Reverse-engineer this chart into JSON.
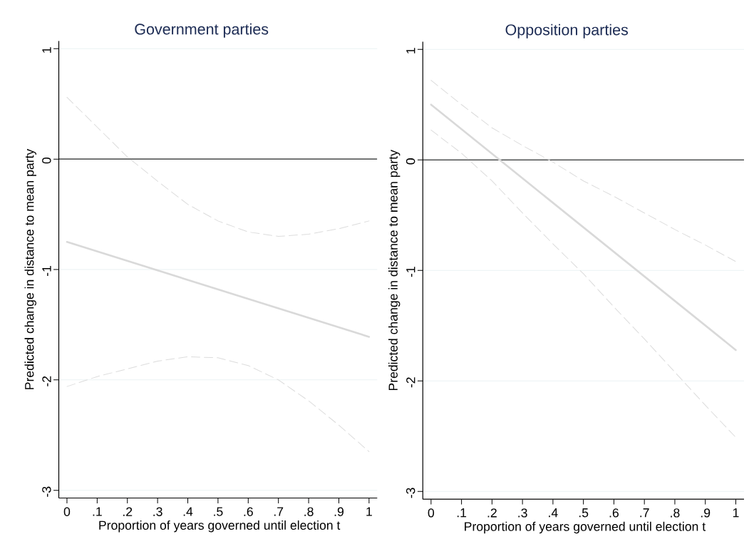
{
  "chart_data": [
    {
      "type": "line",
      "title": "Government parties",
      "xlabel": "Proportion of years governed until election t",
      "ylabel": "Predicted change in distance to mean party",
      "xlim": [
        -0.027,
        1.027
      ],
      "ylim": [
        -3.07,
        1.07
      ],
      "xticks": [
        0,
        {
          "value": 0.1,
          "label": ".1"
        },
        {
          "value": 0.2,
          "label": ".2"
        },
        {
          "value": 0.3,
          "label": ".3"
        },
        {
          "value": 0.4,
          "label": ".4"
        },
        {
          "value": 0.5,
          "label": ".5"
        },
        {
          "value": 0.6,
          "label": ".6"
        },
        {
          "value": 0.7,
          "label": ".7"
        },
        {
          "value": 0.8,
          "label": ".8"
        },
        {
          "value": 0.9,
          "label": ".9"
        },
        1
      ],
      "yticks": [
        -3,
        -2,
        -1,
        0,
        1
      ],
      "grid": "y",
      "ref_lines": [
        {
          "axis": "y",
          "value": 0,
          "color": "#000000"
        }
      ],
      "series": [
        {
          "color": "#d9d9d9",
          "line_style": "solid",
          "x": [
            0,
            1
          ],
          "values": [
            -0.75,
            -1.61
          ]
        },
        {
          "color": "#dcdcdc",
          "line_style": "dashed",
          "x": [
            0,
            0.1,
            0.2,
            0.3,
            0.4,
            0.5,
            0.6,
            0.7,
            0.8,
            0.9,
            1
          ],
          "values": [
            0.56,
            0.29,
            0.02,
            -0.2,
            -0.41,
            -0.56,
            -0.66,
            -0.7,
            -0.68,
            -0.63,
            -0.56
          ]
        },
        {
          "color": "#dcdcdc",
          "line_style": "dashed",
          "x": [
            0,
            0.1,
            0.2,
            0.3,
            0.4,
            0.5,
            0.6,
            0.7,
            0.8,
            0.9,
            1
          ],
          "values": [
            -2.06,
            -1.97,
            -1.9,
            -1.83,
            -1.79,
            -1.8,
            -1.87,
            -2.0,
            -2.19,
            -2.41,
            -2.65
          ]
        }
      ]
    },
    {
      "type": "line",
      "title": "Opposition parties",
      "xlabel": "Proportion of years governed until election t",
      "ylabel": "Predicted change in distance to mean party",
      "xlim": [
        -0.027,
        1.027
      ],
      "ylim": [
        -3.07,
        1.07
      ],
      "xticks": [
        0,
        {
          "value": 0.1,
          "label": ".1"
        },
        {
          "value": 0.2,
          "label": ".2"
        },
        {
          "value": 0.3,
          "label": ".3"
        },
        {
          "value": 0.4,
          "label": ".4"
        },
        {
          "value": 0.5,
          "label": ".5"
        },
        {
          "value": 0.6,
          "label": ".6"
        },
        {
          "value": 0.7,
          "label": ".7"
        },
        {
          "value": 0.8,
          "label": ".8"
        },
        {
          "value": 0.9,
          "label": ".9"
        },
        1
      ],
      "yticks": [
        -3,
        -2,
        -1,
        0,
        1
      ],
      "grid": "y",
      "ref_lines": [
        {
          "axis": "y",
          "value": 0,
          "color": "#000000"
        }
      ],
      "series": [
        {
          "color": "#d9d9d9",
          "line_style": "solid",
          "x": [
            0,
            1
          ],
          "values": [
            0.5,
            -1.72
          ]
        },
        {
          "color": "#dcdcdc",
          "line_style": "dashed",
          "x": [
            0,
            0.1,
            0.2,
            0.3,
            0.4,
            0.5,
            0.6,
            0.7,
            0.8,
            0.9,
            1
          ],
          "values": [
            0.72,
            0.5,
            0.29,
            0.13,
            -0.02,
            -0.19,
            -0.33,
            -0.48,
            -0.63,
            -0.77,
            -0.92
          ]
        },
        {
          "color": "#dcdcdc",
          "line_style": "dashed",
          "x": [
            0,
            0.1,
            0.2,
            0.3,
            0.4,
            0.5,
            0.6,
            0.7,
            0.8,
            0.9,
            1
          ],
          "values": [
            0.27,
            0.06,
            -0.19,
            -0.48,
            -0.76,
            -1.03,
            -1.33,
            -1.62,
            -1.92,
            -2.22,
            -2.51
          ]
        }
      ]
    }
  ]
}
